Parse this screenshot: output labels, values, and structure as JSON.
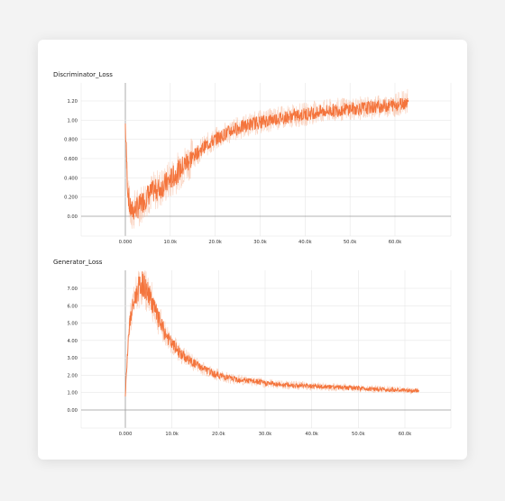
{
  "chart_data": [
    {
      "type": "line",
      "title": "Discriminator_Loss",
      "xlabel": "",
      "ylabel": "",
      "xlim": [
        -20000,
        70000
      ],
      "ylim": [
        -0.1,
        1.4
      ],
      "x_ticks": [
        "0.000",
        "10.0k",
        "20.0k",
        "30.0k",
        "40.0k",
        "50.0k",
        "60.0k"
      ],
      "x_tick_values": [
        0,
        10000,
        20000,
        30000,
        40000,
        50000,
        60000
      ],
      "y_ticks": [
        "0.00",
        "0.200",
        "0.400",
        "0.600",
        "0.800",
        "1.00",
        "1.20"
      ],
      "y_tick_values": [
        0,
        0.2,
        0.4,
        0.6,
        0.8,
        1.0,
        1.2
      ],
      "grid": true,
      "series": [
        {
          "color": "#f4743c",
          "x": [
            0,
            500,
            1000,
            1500,
            2000,
            3000,
            4000,
            5000,
            6000,
            8000,
            10000,
            12000,
            14000,
            16000,
            18000,
            20000,
            22000,
            24000,
            26000,
            28000,
            30000,
            32000,
            34000,
            36000,
            38000,
            40000,
            42000,
            44000,
            46000,
            48000,
            50000,
            52000,
            54000,
            56000,
            58000,
            60000,
            62000,
            62800
          ],
          "y": [
            0.95,
            0.3,
            0.08,
            0.05,
            0.07,
            0.1,
            0.16,
            0.22,
            0.25,
            0.3,
            0.38,
            0.48,
            0.58,
            0.66,
            0.74,
            0.8,
            0.85,
            0.9,
            0.93,
            0.96,
            0.98,
            1.0,
            1.02,
            1.03,
            1.05,
            1.06,
            1.08,
            1.09,
            1.1,
            1.11,
            1.12,
            1.12,
            1.13,
            1.14,
            1.15,
            1.16,
            1.18,
            1.2
          ]
        }
      ]
    },
    {
      "type": "line",
      "title": "Generator_Loss",
      "xlabel": "",
      "ylabel": "",
      "xlim": [
        -10000,
        70000
      ],
      "ylim": [
        -0.5,
        8.0
      ],
      "x_ticks": [
        "0.000",
        "10.0k",
        "20.0k",
        "30.0k",
        "40.0k",
        "50.0k",
        "60.0k"
      ],
      "x_tick_values": [
        0,
        10000,
        20000,
        30000,
        40000,
        50000,
        60000
      ],
      "y_ticks": [
        "0.00",
        "1.00",
        "2.00",
        "3.00",
        "4.00",
        "5.00",
        "6.00",
        "7.00"
      ],
      "y_tick_values": [
        0,
        1,
        2,
        3,
        4,
        5,
        6,
        7
      ],
      "grid": true,
      "series": [
        {
          "color": "#f4743c",
          "x": [
            0,
            300,
            800,
            1500,
            2500,
            3500,
            4500,
            5500,
            7000,
            8500,
            10000,
            12000,
            14000,
            16000,
            18000,
            20000,
            23000,
            26000,
            30000,
            34000,
            38000,
            42000,
            46000,
            50000,
            54000,
            58000,
            62000,
            62800
          ],
          "y": [
            0.8,
            2.5,
            4.8,
            5.8,
            6.8,
            7.3,
            6.9,
            6.4,
            5.3,
            4.4,
            3.8,
            3.2,
            2.8,
            2.5,
            2.2,
            2.0,
            1.8,
            1.7,
            1.55,
            1.45,
            1.4,
            1.35,
            1.3,
            1.25,
            1.2,
            1.15,
            1.1,
            1.1
          ]
        }
      ]
    }
  ]
}
